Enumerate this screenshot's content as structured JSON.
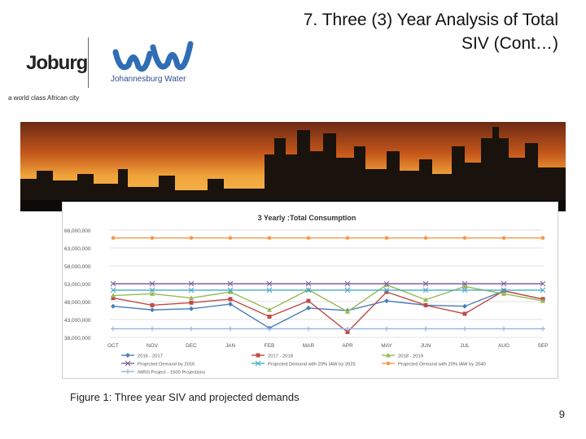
{
  "slide": {
    "title_line1": "7. Three (3) Year Analysis of Total",
    "title_line2": "SIV (Cont…)",
    "caption": "Figure 1: Three year SIV and projected demands",
    "page_number": "9"
  },
  "logos": {
    "joburg_text": "Joburg",
    "joburg_tagline": "a world class African city",
    "jw_text": "Johannesburg Water"
  },
  "chart_data": {
    "type": "line",
    "title": "3 Yearly :Total Consumption",
    "xlabel": "",
    "ylabel": "",
    "categories": [
      "OCT",
      "NOV",
      "DEC",
      "JAN",
      "FEB",
      "MAR",
      "APR",
      "MAY",
      "JUN",
      "JUL",
      "AUG",
      "SEP"
    ],
    "y_ticks": [
      "38,000,000",
      "43,000,000",
      "48,000,000",
      "53,000,000",
      "58,000,000",
      "63,000,000",
      "68,000,000"
    ],
    "ylim": [
      38000000,
      68000000
    ],
    "grid": true,
    "legend_position": "bottom",
    "series": [
      {
        "name": "2016 - 2017",
        "color": "#4a7ebb",
        "marker": "diamond",
        "values": [
          46700000,
          45700000,
          46000000,
          47300000,
          40600000,
          46200000,
          45500000,
          48200000,
          47000000,
          46700000,
          51000000,
          48700000
        ]
      },
      {
        "name": "2017 - 2018",
        "color": "#be4b48",
        "marker": "square",
        "values": [
          49000000,
          47000000,
          47700000,
          48700000,
          43800000,
          48200000,
          39500000,
          50700000,
          47000000,
          44600000,
          51000000,
          48700000
        ]
      },
      {
        "name": "2018 - 2019",
        "color": "#98b954",
        "marker": "triangle",
        "values": [
          49700000,
          50200000,
          49000000,
          50700000,
          45700000,
          51300000,
          45200000,
          52700000,
          48500000,
          52200000,
          50200000,
          48200000
        ]
      },
      {
        "name": "Projected Demand by 2016",
        "color": "#7d60a0",
        "marker": "x",
        "values": [
          53000000,
          53000000,
          53000000,
          53000000,
          53000000,
          53000000,
          53000000,
          53000000,
          53000000,
          53000000,
          53000000,
          53000000
        ]
      },
      {
        "name": "Projected Demand with 20% IAW by 2025",
        "color": "#46aac5",
        "marker": "x",
        "values": [
          51200000,
          51200000,
          51200000,
          51200000,
          51200000,
          51200000,
          51200000,
          51200000,
          51200000,
          51200000,
          51200000,
          51200000
        ]
      },
      {
        "name": "Projected Demand with 20% IAW by 2040",
        "color": "#f79646",
        "marker": "circle",
        "values": [
          65800000,
          65800000,
          65800000,
          65800000,
          65800000,
          65800000,
          65800000,
          65800000,
          65800000,
          65800000,
          65800000,
          65800000
        ]
      },
      {
        "name": "IWRS Project - 1500 Projections",
        "color": "#8eb4e3",
        "marker": "plus",
        "values": [
          40400000,
          40400000,
          40400000,
          40400000,
          40400000,
          40400000,
          40400000,
          40400000,
          40400000,
          40400000,
          40400000,
          40400000
        ]
      }
    ]
  }
}
